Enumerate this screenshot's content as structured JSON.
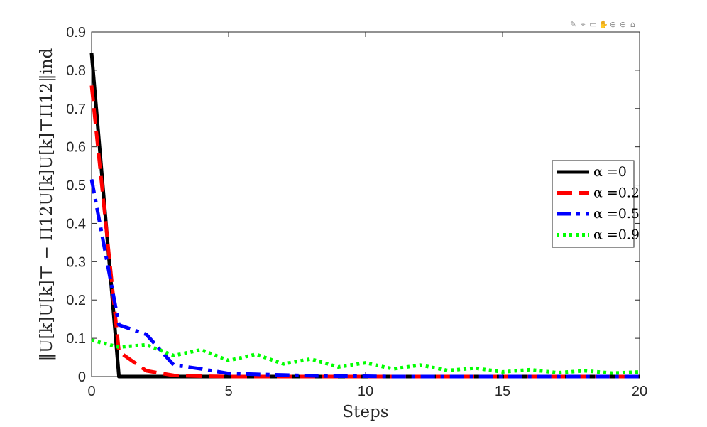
{
  "chart_data": {
    "type": "line",
    "title": "",
    "xlabel": "Steps",
    "ylabel": "‖U[k]U[k]⊤ − Π12U[k]U[k]⊤Π12‖ind",
    "xlim": [
      0,
      20
    ],
    "ylim": [
      0,
      0.9
    ],
    "xticks": [
      0,
      5,
      10,
      15,
      20
    ],
    "yticks": [
      0,
      0.1,
      0.2,
      0.3,
      0.4,
      0.5,
      0.6,
      0.7,
      0.8,
      0.9
    ],
    "xtick_labels": [
      "0",
      "5",
      "10",
      "15",
      "20"
    ],
    "ytick_labels": [
      "0",
      "0.1",
      "0.2",
      "0.3",
      "0.4",
      "0.5",
      "0.6",
      "0.7",
      "0.8",
      "0.9"
    ],
    "grid": false,
    "legend_position": "right",
    "series": [
      {
        "name": "α =0",
        "color": "#000000",
        "dash": "solid",
        "x": [
          0,
          1,
          2,
          3,
          4,
          5,
          6,
          7,
          8,
          9,
          10,
          11,
          12,
          13,
          14,
          15,
          16,
          17,
          18,
          19,
          20
        ],
        "y": [
          0.845,
          0,
          0,
          0,
          0,
          0,
          0,
          0,
          0,
          0,
          0,
          0,
          0,
          0,
          0,
          0,
          0,
          0,
          0,
          0,
          0
        ]
      },
      {
        "name": "α =0.2",
        "color": "#ff0000",
        "dash": "dashed",
        "x": [
          0,
          1,
          2,
          3,
          4,
          5,
          6,
          7,
          8,
          9,
          10,
          11,
          12,
          13,
          14,
          15,
          16,
          17,
          18,
          19,
          20
        ],
        "y": [
          0.76,
          0.065,
          0.015,
          0.003,
          0.001,
          0,
          0,
          0,
          0,
          0,
          0,
          0,
          0,
          0,
          0,
          0,
          0,
          0,
          0,
          0,
          0
        ]
      },
      {
        "name": "α =0.5",
        "color": "#0000ff",
        "dash": "dashdot",
        "x": [
          0,
          1,
          2,
          3,
          4,
          5,
          6,
          7,
          8,
          9,
          10,
          11,
          12,
          13,
          14,
          15,
          16,
          17,
          18,
          19,
          20
        ],
        "y": [
          0.515,
          0.135,
          0.11,
          0.03,
          0.02,
          0.008,
          0.006,
          0.004,
          0.002,
          0.001,
          0.001,
          0,
          0,
          0,
          0,
          0,
          0,
          0,
          0,
          0,
          0
        ]
      },
      {
        "name": "α =0.9",
        "color": "#00ff00",
        "dash": "dotted",
        "x": [
          0,
          1,
          2,
          3,
          4,
          5,
          6,
          7,
          8,
          9,
          10,
          11,
          12,
          13,
          14,
          15,
          16,
          17,
          18,
          19,
          20
        ],
        "y": [
          0.095,
          0.077,
          0.083,
          0.055,
          0.07,
          0.042,
          0.058,
          0.033,
          0.046,
          0.025,
          0.036,
          0.02,
          0.03,
          0.016,
          0.022,
          0.012,
          0.018,
          0.01,
          0.015,
          0.009,
          0.012
        ]
      }
    ]
  },
  "toolbar": {
    "icons": [
      "brush-icon",
      "data-cursor-icon",
      "select-icon",
      "pan-icon",
      "zoom-in-icon",
      "zoom-out-icon",
      "home-icon"
    ]
  }
}
